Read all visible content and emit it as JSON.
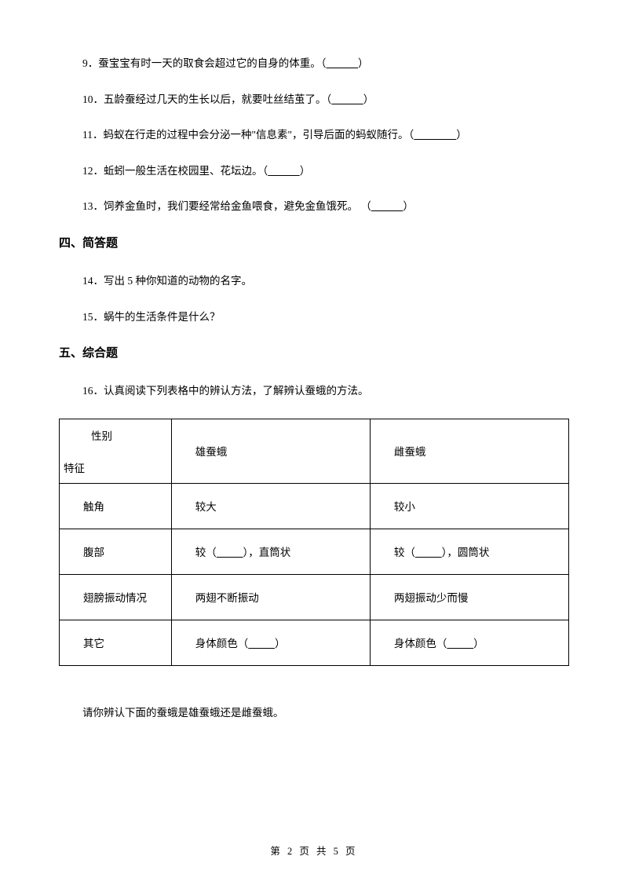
{
  "questions": {
    "q9": "9．蚕宝宝有时一天的取食会超过它的自身的体重。（",
    "q9_blank": "            ",
    "q9_end": "）",
    "q10": "10．五龄蚕经过几天的生长以后，就要吐丝结茧了。（",
    "q10_blank": "            ",
    "q10_end": "）",
    "q11": "11．蚂蚁在行走的过程中会分泌一种\"信息素\"，引导后面的蚂蚁随行。（",
    "q11_blank": "                ",
    "q11_end": "）",
    "q12": "12．蚯蚓一般生活在校园里、花坛边。（",
    "q12_blank": "            ",
    "q12_end": "）",
    "q13": "13．饲养金鱼时，我们要经常给金鱼喂食，避免金鱼饿死。  （",
    "q13_blank": "            ",
    "q13_end": "）",
    "q14": "14．写出 5 种你知道的动物的名字。",
    "q15": "15．蜗牛的生活条件是什么？",
    "q16": "16．认真阅读下列表格中的辨认方法，了解辨认蚕蛾的方法。"
  },
  "sections": {
    "s4": "四、简答题",
    "s5": "五、综合题"
  },
  "table": {
    "header": {
      "diag_top": "性别",
      "diag_bottom": "特征",
      "col2": "雄蚕蛾",
      "col3": "雌蚕蛾"
    },
    "rows": {
      "r1c1": "触角",
      "r1c2": "较大",
      "r1c3": "较小",
      "r2c1": "腹部",
      "r2c2a": "较（",
      "r2c2_blank": "          ",
      "r2c2b": "），直筒状",
      "r2c3a": "较（",
      "r2c3_blank": "          ",
      "r2c3b": "），圆筒状",
      "r3c1": "翅膀振动情况",
      "r3c2": "两翅不断振动",
      "r3c3": "两翅振动少而慢",
      "r4c1": "其它",
      "r4c2a": "身体颜色（",
      "r4c2_blank": "          ",
      "r4c2b": "）",
      "r4c3a": "身体颜色（",
      "r4c3_blank": "          ",
      "r4c3b": "）"
    }
  },
  "followup": "请你辨认下面的蚕蛾是雄蚕蛾还是雌蚕蛾。",
  "footer": "第 2 页 共 5 页"
}
